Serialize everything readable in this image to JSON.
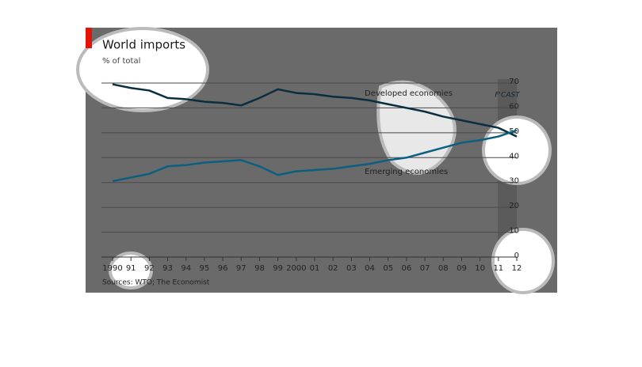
{
  "chart_data": {
    "type": "line",
    "title": "World imports",
    "subtitle": "% of total",
    "source": "Sources: WTO; The Economist",
    "forecast_label": "F'CAST",
    "categories": [
      "1990",
      "91",
      "92",
      "93",
      "94",
      "95",
      "96",
      "97",
      "98",
      "99",
      "2000",
      "01",
      "02",
      "03",
      "04",
      "05",
      "06",
      "07",
      "08",
      "09",
      "10",
      "11",
      "12"
    ],
    "series": [
      {
        "name": "Developed economies",
        "color": "#0a2e40",
        "values": [
          69.5,
          68,
          67,
          64,
          63.5,
          62.5,
          62,
          61,
          64,
          67.5,
          66,
          65.5,
          64.5,
          64,
          63,
          61.5,
          60,
          58.5,
          56.5,
          55,
          53.5,
          52,
          48.5
        ]
      },
      {
        "name": "Emerging economies",
        "color": "#0b5f80",
        "values": [
          30.5,
          32,
          33.5,
          36.5,
          37,
          38,
          38.5,
          39,
          36.5,
          33,
          34.5,
          35,
          35.5,
          36.5,
          37.5,
          39,
          40,
          42,
          44,
          46,
          47,
          48.5,
          51
        ]
      }
    ],
    "ylim": [
      0,
      70
    ],
    "yticks": [
      0,
      10,
      20,
      30,
      40,
      50,
      60,
      70
    ],
    "grid": true
  }
}
